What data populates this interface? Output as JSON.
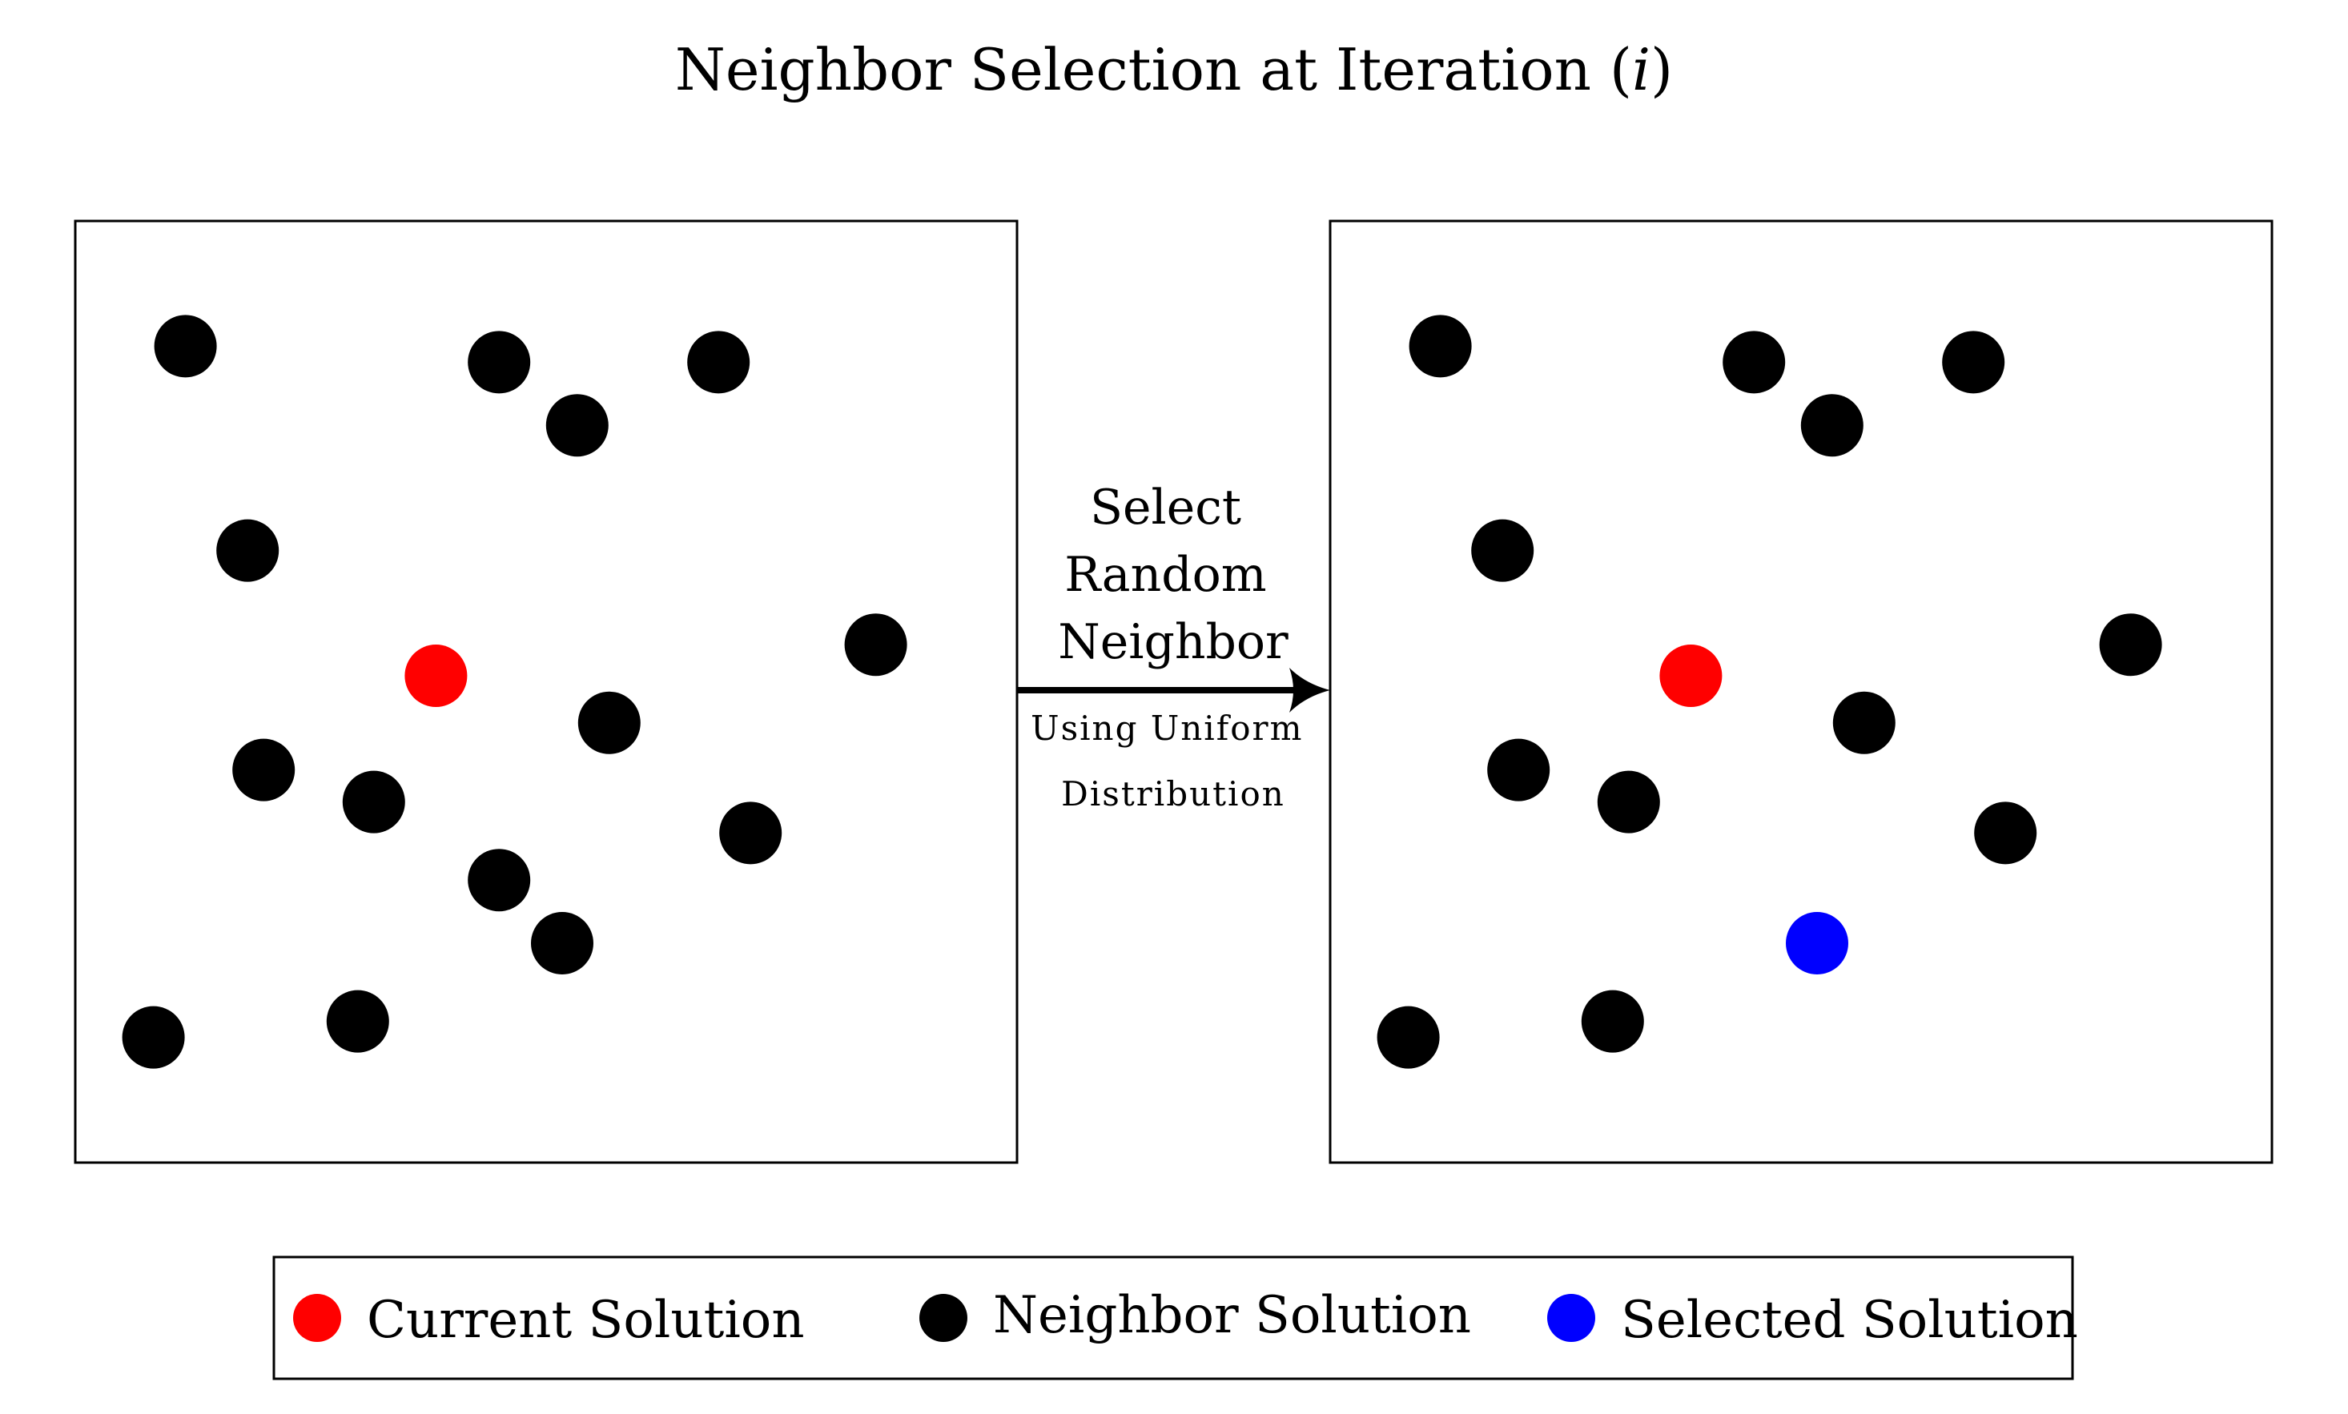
{
  "title": {
    "prefix": "Neighbor Selection at Iteration (",
    "variable": "i",
    "suffix": ")"
  },
  "colors": {
    "current": "#ff0000",
    "neighbor": "#000000",
    "selected": "#0000ff",
    "frame": "#000000"
  },
  "arrow": {
    "main_label_lines": [
      "Select",
      "Random",
      "Neighbor"
    ],
    "sub_label_lines": [
      "Using Uniform",
      "Distribution"
    ]
  },
  "legend": {
    "items": [
      {
        "label": "Current Solution",
        "role": "current"
      },
      {
        "label": "Neighbor Solution",
        "role": "neighbor"
      },
      {
        "label": "Selected Solution",
        "role": "selected"
      }
    ]
  },
  "panels": [
    {
      "name": "before",
      "points": [
        {
          "x": 0.117,
          "y": 0.867,
          "role": "neighbor"
        },
        {
          "x": 0.45,
          "y": 0.85,
          "role": "neighbor"
        },
        {
          "x": 0.533,
          "y": 0.783,
          "role": "neighbor"
        },
        {
          "x": 0.683,
          "y": 0.85,
          "role": "neighbor"
        },
        {
          "x": 0.183,
          "y": 0.65,
          "role": "neighbor"
        },
        {
          "x": 0.85,
          "y": 0.55,
          "role": "neighbor"
        },
        {
          "x": 0.383,
          "y": 0.517,
          "role": "current"
        },
        {
          "x": 0.567,
          "y": 0.467,
          "role": "neighbor"
        },
        {
          "x": 0.2,
          "y": 0.417,
          "role": "neighbor"
        },
        {
          "x": 0.317,
          "y": 0.383,
          "role": "neighbor"
        },
        {
          "x": 0.717,
          "y": 0.35,
          "role": "neighbor"
        },
        {
          "x": 0.517,
          "y": 0.233,
          "role": "neighbor"
        },
        {
          "x": 0.083,
          "y": 0.133,
          "role": "neighbor"
        },
        {
          "x": 0.3,
          "y": 0.15,
          "role": "neighbor"
        },
        {
          "x": 0.45,
          "y": 0.3,
          "role": "neighbor"
        }
      ]
    },
    {
      "name": "after",
      "points": [
        {
          "x": 0.117,
          "y": 0.867,
          "role": "neighbor"
        },
        {
          "x": 0.45,
          "y": 0.85,
          "role": "neighbor"
        },
        {
          "x": 0.533,
          "y": 0.783,
          "role": "neighbor"
        },
        {
          "x": 0.683,
          "y": 0.85,
          "role": "neighbor"
        },
        {
          "x": 0.183,
          "y": 0.65,
          "role": "neighbor"
        },
        {
          "x": 0.85,
          "y": 0.55,
          "role": "neighbor"
        },
        {
          "x": 0.383,
          "y": 0.517,
          "role": "current"
        },
        {
          "x": 0.567,
          "y": 0.467,
          "role": "neighbor"
        },
        {
          "x": 0.2,
          "y": 0.417,
          "role": "neighbor"
        },
        {
          "x": 0.317,
          "y": 0.383,
          "role": "neighbor"
        },
        {
          "x": 0.717,
          "y": 0.35,
          "role": "neighbor"
        },
        {
          "x": 0.517,
          "y": 0.233,
          "role": "selected"
        },
        {
          "x": 0.083,
          "y": 0.133,
          "role": "neighbor"
        },
        {
          "x": 0.3,
          "y": 0.15,
          "role": "neighbor"
        }
      ]
    }
  ]
}
